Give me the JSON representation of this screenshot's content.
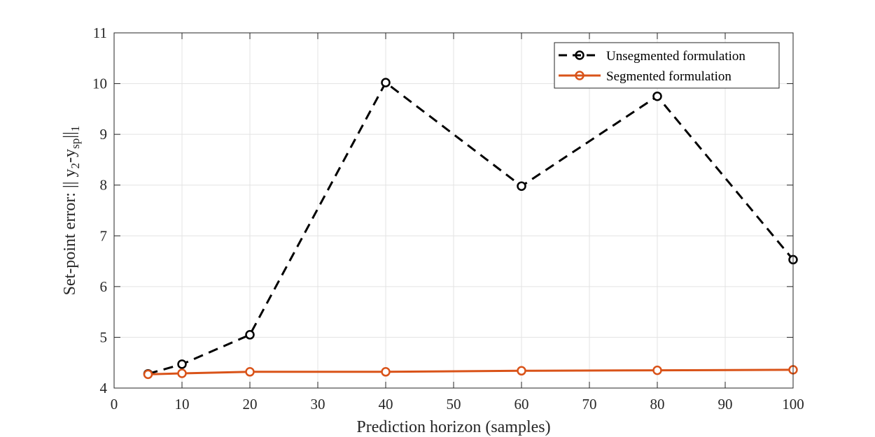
{
  "chart_data": {
    "type": "line",
    "xlabel": "Prediction horizon (samples)",
    "ylabel": {
      "prefix": "Set-point error: || y",
      "sub1": "2",
      "mid": "-y",
      "sub2": "sp",
      "bars": "||",
      "sub3": "1"
    },
    "xlim": [
      0,
      100
    ],
    "ylim": [
      4,
      11
    ],
    "xticks": [
      0,
      10,
      20,
      30,
      40,
      50,
      60,
      70,
      80,
      90,
      100
    ],
    "yticks": [
      4,
      5,
      6,
      7,
      8,
      9,
      10,
      11
    ],
    "grid": true,
    "legend_position": "top-right",
    "series": [
      {
        "name": "Unsegmented formulation",
        "color": "#000000",
        "line_style": "dashed",
        "marker": "circle",
        "x": [
          5,
          10,
          20,
          40,
          60,
          80,
          100
        ],
        "y": [
          4.28,
          4.47,
          5.05,
          10.02,
          7.98,
          9.75,
          6.53
        ]
      },
      {
        "name": "Segmented formulation",
        "color": "#D95319",
        "line_style": "solid",
        "marker": "circle",
        "x": [
          5,
          10,
          20,
          40,
          60,
          80,
          100
        ],
        "y": [
          4.27,
          4.29,
          4.32,
          4.32,
          4.34,
          4.35,
          4.36
        ]
      }
    ]
  }
}
